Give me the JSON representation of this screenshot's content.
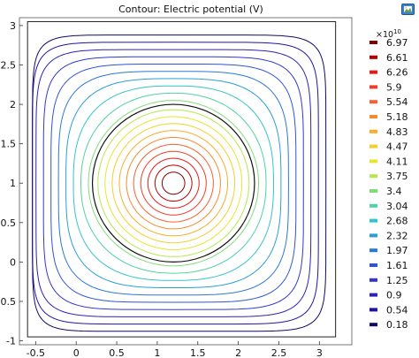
{
  "chart_data": {
    "type": "contour",
    "title": "Contour: Electric potential (V)",
    "xlabel": "",
    "ylabel": "",
    "xlim": [
      -0.7,
      3.4
    ],
    "ylim": [
      -1.05,
      3.1
    ],
    "x_ticks": [
      -0.5,
      0,
      0.5,
      1,
      1.5,
      2,
      2.5,
      3
    ],
    "y_ticks": [
      -1,
      -0.5,
      0,
      0.5,
      1,
      1.5,
      2,
      2.5,
      3
    ],
    "x_tick_labels": [
      "-0.5",
      "0",
      "0.5",
      "1",
      "1.5",
      "2",
      "2.5",
      "3"
    ],
    "y_tick_labels": [
      "-1",
      "-0.5",
      "0",
      "0.5",
      "1",
      "1.5",
      "2",
      "2.5",
      "3"
    ],
    "grid": false,
    "domain_box": {
      "x": [
        -0.6,
        3.2
      ],
      "y": [
        -0.95,
        3.05
      ]
    },
    "circle_boundary": {
      "center": [
        1.2,
        1.0
      ],
      "radius": 1.0,
      "color": "#111111"
    },
    "source_center": [
      1.2,
      1.0
    ],
    "colorbar": {
      "exponent_label": "×10",
      "exponent_power": "10",
      "position": "right",
      "levels": [
        6.97,
        6.61,
        6.26,
        5.9,
        5.54,
        5.18,
        4.83,
        4.47,
        4.11,
        3.75,
        3.4,
        3.04,
        2.68,
        2.32,
        1.97,
        1.61,
        1.25,
        0.9,
        0.54,
        0.18
      ],
      "level_labels": [
        "6.97",
        "6.61",
        "6.26",
        "5.9",
        "5.54",
        "5.18",
        "4.83",
        "4.47",
        "4.11",
        "3.75",
        "3.4",
        "3.04",
        "2.68",
        "2.32",
        "1.97",
        "1.61",
        "1.25",
        "0.9",
        "0.54",
        "0.18"
      ],
      "colors": [
        "#7a0000",
        "#b00000",
        "#e01b1b",
        "#f03c28",
        "#f5602e",
        "#f78a2c",
        "#f7ae2a",
        "#f2d02c",
        "#e6e62e",
        "#b8e650",
        "#7fdc78",
        "#4fd2a6",
        "#33c3cc",
        "#2a9fd6",
        "#2a78d8",
        "#2f55d3",
        "#3338c8",
        "#2b22b8",
        "#1f14a0",
        "#0f0a6a"
      ]
    }
  },
  "toolbar": {
    "icon": "image-export-icon"
  }
}
